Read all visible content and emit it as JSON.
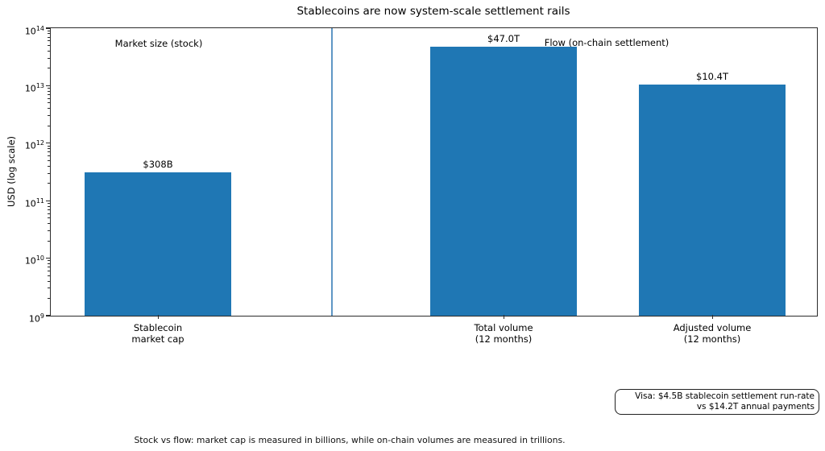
{
  "figure": {
    "title": "Stablecoins are now system-scale settlement rails",
    "ylabel": "USD (log scale)",
    "annotations": {
      "left": "Market size (stock)",
      "right": "Flow (on-chain settlement)"
    },
    "note_box": {
      "line1": "Visa: $4.5B stablecoin settlement run-rate",
      "line2": "vs $14.2T annual payments"
    },
    "caption": "Stock vs flow: market cap is measured in billions, while on-chain volumes are measured in trillions."
  },
  "chart_data": {
    "type": "bar",
    "title": "Stablecoins are now system-scale settlement rails",
    "xlabel": "",
    "ylabel": "USD (log scale)",
    "yscale": "log",
    "ylim": [
      1000000000.0,
      100000000000000.0
    ],
    "y_tick_exponents": [
      9,
      10,
      11,
      12,
      13,
      14
    ],
    "grid": false,
    "categories": [
      "Stablecoin\nmarket cap",
      "Total volume\n(12 months)",
      "Adjusted volume\n(12 months)"
    ],
    "values": [
      308000000000.0,
      47000000000000.0,
      10400000000000.0
    ],
    "bar_labels": [
      "$308B",
      "$47.0T",
      "$10.4T"
    ],
    "groups": {
      "left_of_divider": "Market size (stock)",
      "right_of_divider": "Flow (on-chain settlement)"
    },
    "bar_color": "#1f77b4",
    "divider_color": "#5f97c5"
  }
}
